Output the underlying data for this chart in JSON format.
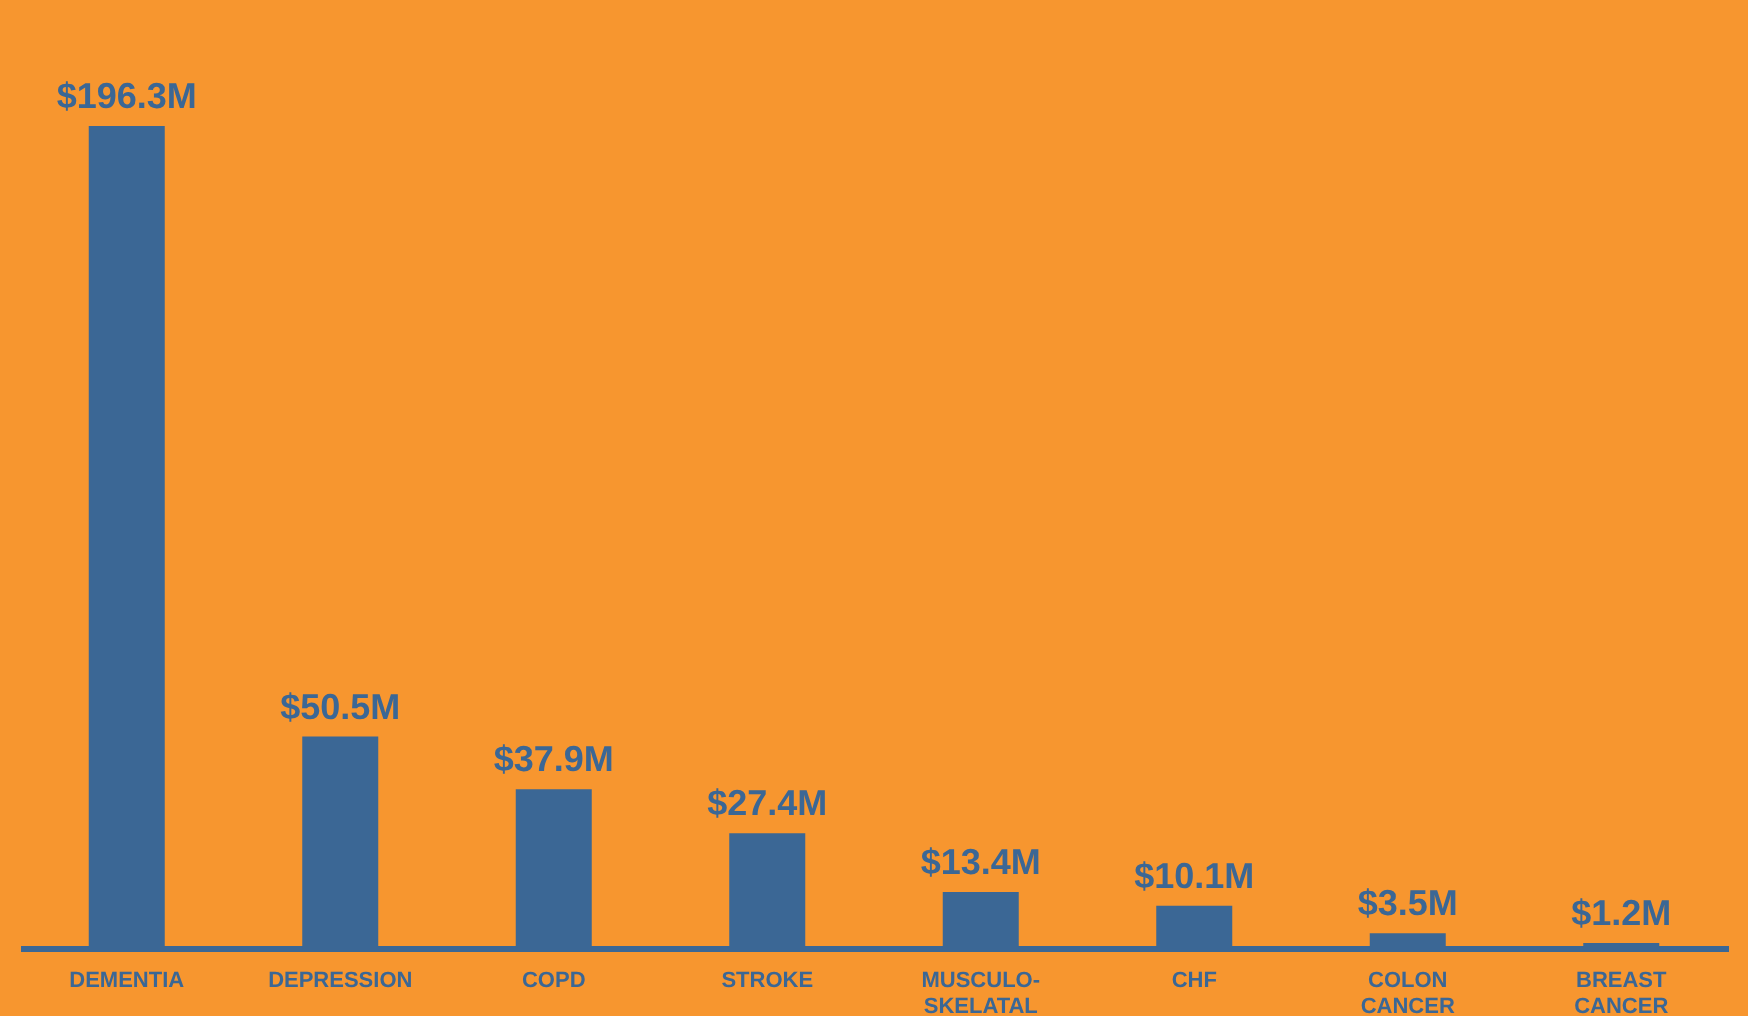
{
  "chart_data": {
    "type": "bar",
    "categories": [
      "DEMENTIA",
      "DEPRESSION",
      "COPD",
      "STROKE",
      "MUSCULO-SKELATAL",
      "CHF",
      "COLON CANCER",
      "BREAST CANCER"
    ],
    "values": [
      196.3,
      50.5,
      37.9,
      27.4,
      13.4,
      10.1,
      3.5,
      1.2
    ],
    "value_labels": [
      "$196.3M",
      "$50.5M",
      "$37.9M",
      "$27.4M",
      "$13.4M",
      "$10.1M",
      "$3.5M",
      "$1.2M"
    ],
    "color": "#3b6795"
  }
}
